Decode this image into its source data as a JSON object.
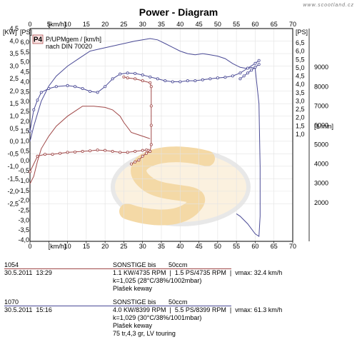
{
  "chart_data": {
    "type": "line",
    "title": "Power - Diagram",
    "watermark": "www.scootland.cz",
    "badge": "P4",
    "caption": [
      "P/UPMgem / [km/h]",
      "nach DIN 70020"
    ],
    "x_axis": {
      "label": "[km/h]",
      "range": [
        0,
        70
      ],
      "ticks": [
        0,
        5,
        10,
        15,
        20,
        25,
        30,
        35,
        40,
        45,
        50,
        55,
        60,
        65,
        70
      ]
    },
    "y_left_kw": {
      "label": "[KW]",
      "range": [
        -4.0,
        4.5
      ],
      "ticks": [
        "4,5",
        "4,0",
        "3,5",
        "3,0",
        "2,5",
        "2,0",
        "1,5",
        "1,0",
        "0,5",
        "0,0",
        "-0,5",
        "-1,0",
        "-1,5",
        "-2,0",
        "-2,5"
      ],
      "tick_values": [
        4.5,
        4.0,
        3.5,
        3.0,
        2.5,
        2.0,
        1.5,
        1.0,
        0.5,
        0.0,
        -0.5,
        -1.0,
        -1.5,
        -2.0,
        -2.5
      ]
    },
    "y_left_ps": {
      "label": "[PS]",
      "ticks": [
        "6,0",
        "5,5",
        "5,0",
        "4,5",
        "4,0",
        "3,5",
        "3,0",
        "2,5",
        "2,0",
        "1,5",
        "1,0",
        "0,5",
        "0,0",
        "-0,5",
        "-1,0",
        "-1,5",
        "-2,0",
        "-2,5",
        "-3,0",
        "-3,5",
        "-4,0"
      ]
    },
    "y_right_ps": {
      "label": "[PS]",
      "ticks": [
        "6,5",
        "6,0",
        "5,5",
        "5,0",
        "4,5",
        "4,0",
        "3,5",
        "3,0",
        "2,5",
        "2,0",
        "1,5",
        "1,0"
      ]
    },
    "y_right_rpm": {
      "label": "[1/min]",
      "range": [
        0,
        11000
      ],
      "ticks": [
        9000,
        8000,
        7000,
        6000,
        5000,
        4000,
        3000,
        2000
      ]
    },
    "series": [
      {
        "run": "1054",
        "color": "#a04848",
        "quantity": "power",
        "points": [
          [
            0,
            -1.7
          ],
          [
            1,
            -1.4
          ],
          [
            2,
            -0.8
          ],
          [
            3,
            -0.3
          ],
          [
            5,
            0.2
          ],
          [
            7,
            0.6
          ],
          [
            10,
            1.0
          ],
          [
            12,
            1.2
          ],
          [
            14,
            1.4
          ],
          [
            17,
            1.4
          ],
          [
            20,
            1.35
          ],
          [
            22,
            1.25
          ],
          [
            24,
            1.0
          ],
          [
            25,
            0.75
          ],
          [
            26,
            0.55
          ],
          [
            27,
            0.35
          ],
          [
            29,
            0.25
          ],
          [
            31,
            0.15
          ],
          [
            32,
            0.1
          ]
        ]
      },
      {
        "run": "1054",
        "color": "#a04848",
        "quantity": "rpm",
        "markers": true,
        "points": [
          [
            0,
            3600
          ],
          [
            2,
            4400
          ],
          [
            4,
            4500
          ],
          [
            6,
            4500
          ],
          [
            8,
            4550
          ],
          [
            10,
            4600
          ],
          [
            12,
            4620
          ],
          [
            14,
            4650
          ],
          [
            16,
            4680
          ],
          [
            18,
            4720
          ],
          [
            20,
            4700
          ],
          [
            22,
            4650
          ],
          [
            24,
            4600
          ],
          [
            26,
            4600
          ],
          [
            28,
            4650
          ],
          [
            30,
            4700
          ],
          [
            31,
            4720
          ],
          [
            31.5,
            4700
          ],
          [
            32,
            4650
          ],
          [
            32.3,
            5000
          ],
          [
            32.3,
            6000
          ],
          [
            32.3,
            7000
          ],
          [
            32.3,
            8000
          ],
          [
            32,
            8200
          ],
          [
            30,
            8300
          ],
          [
            28,
            8400
          ],
          [
            26,
            8450
          ],
          [
            25,
            8500
          ]
        ]
      },
      {
        "run": "1054",
        "color": "#a04848",
        "quantity": "rpm-decel",
        "markers": true,
        "points": [
          [
            27,
            4000
          ],
          [
            28,
            4100
          ],
          [
            29,
            4200
          ],
          [
            30,
            4400
          ],
          [
            31,
            4550
          ],
          [
            32,
            4650
          ]
        ]
      },
      {
        "run": "1070",
        "color": "#4a4a96",
        "quantity": "power",
        "points": [
          [
            0,
            0.0
          ],
          [
            1,
            0.6
          ],
          [
            2,
            1.1
          ],
          [
            3,
            1.6
          ],
          [
            5,
            2.2
          ],
          [
            7,
            2.6
          ],
          [
            10,
            3.0
          ],
          [
            13,
            3.3
          ],
          [
            16,
            3.6
          ],
          [
            19,
            3.7
          ],
          [
            22,
            3.8
          ],
          [
            25,
            3.9
          ],
          [
            28,
            4.0
          ],
          [
            30,
            4.05
          ],
          [
            32,
            4.1
          ],
          [
            34,
            4.05
          ],
          [
            36,
            3.9
          ],
          [
            38,
            3.75
          ],
          [
            40,
            3.6
          ],
          [
            42,
            3.5
          ],
          [
            44,
            3.45
          ],
          [
            46,
            3.5
          ],
          [
            48,
            3.45
          ],
          [
            50,
            3.4
          ],
          [
            52,
            3.3
          ],
          [
            54,
            3.1
          ],
          [
            56,
            2.95
          ],
          [
            58,
            2.9
          ],
          [
            59,
            2.95
          ],
          [
            60,
            2.9
          ],
          [
            61,
            1.5
          ],
          [
            61.3,
            -1.0
          ],
          [
            61.3,
            -3.0
          ],
          [
            61,
            -3.8
          ],
          [
            60,
            -3.7
          ],
          [
            58,
            -3.3
          ],
          [
            56,
            -3.0
          ],
          [
            55,
            -2.9
          ]
        ]
      },
      {
        "run": "1070",
        "color": "#4a4a96",
        "quantity": "rpm",
        "markers": true,
        "points": [
          [
            0,
            5700
          ],
          [
            1,
            6800
          ],
          [
            2,
            7300
          ],
          [
            3,
            7700
          ],
          [
            5,
            7900
          ],
          [
            7,
            8000
          ],
          [
            10,
            8050
          ],
          [
            12,
            8000
          ],
          [
            14,
            7900
          ],
          [
            16,
            7750
          ],
          [
            18,
            7700
          ],
          [
            20,
            8000
          ],
          [
            22,
            8400
          ],
          [
            24,
            8650
          ],
          [
            26,
            8700
          ],
          [
            28,
            8680
          ],
          [
            30,
            8600
          ],
          [
            32,
            8500
          ],
          [
            34,
            8400
          ],
          [
            36,
            8300
          ],
          [
            38,
            8250
          ],
          [
            40,
            8250
          ],
          [
            42,
            8300
          ],
          [
            44,
            8300
          ],
          [
            46,
            8350
          ],
          [
            48,
            8400
          ],
          [
            50,
            8450
          ],
          [
            52,
            8480
          ],
          [
            54,
            8550
          ],
          [
            56,
            8700
          ],
          [
            58,
            8950
          ],
          [
            60,
            9200
          ],
          [
            61,
            9350
          ]
        ]
      },
      {
        "run": "1070",
        "color": "#4a4a96",
        "quantity": "rpm-decel",
        "markers": true,
        "points": [
          [
            56,
            8400
          ],
          [
            57,
            8550
          ],
          [
            58,
            8700
          ],
          [
            59,
            8850
          ],
          [
            60,
            9000
          ],
          [
            61,
            9150
          ]
        ]
      }
    ]
  },
  "runs": [
    {
      "id": "1054",
      "date": "30.5.2011",
      "time": "13:29",
      "color": "#a04848",
      "model": "SONSTIGE bis",
      "ccm": "50ccm",
      "lines": [
        "1.1 KW/4735 RPM  |  1.5 PS/4735 RPM  |  vmax: 32.4 km/h",
        "k=1,025 (28°C/38%/1002mbar)",
        "Plašek keway"
      ]
    },
    {
      "id": "1070",
      "date": "30.5.2011",
      "time": "15:16",
      "color": "#4a4a96",
      "model": "SONSTIGE bis",
      "ccm": "50ccm",
      "lines": [
        "4.0 KW/8399 RPM  |  5.5 PS/8399 RPM  |  vmax: 61.3 km/h",
        "k=1,029 (30°C/38%/1001mbar)",
        "Plašek keway",
        "75 tr,4,3 gr, LV touring"
      ]
    }
  ]
}
